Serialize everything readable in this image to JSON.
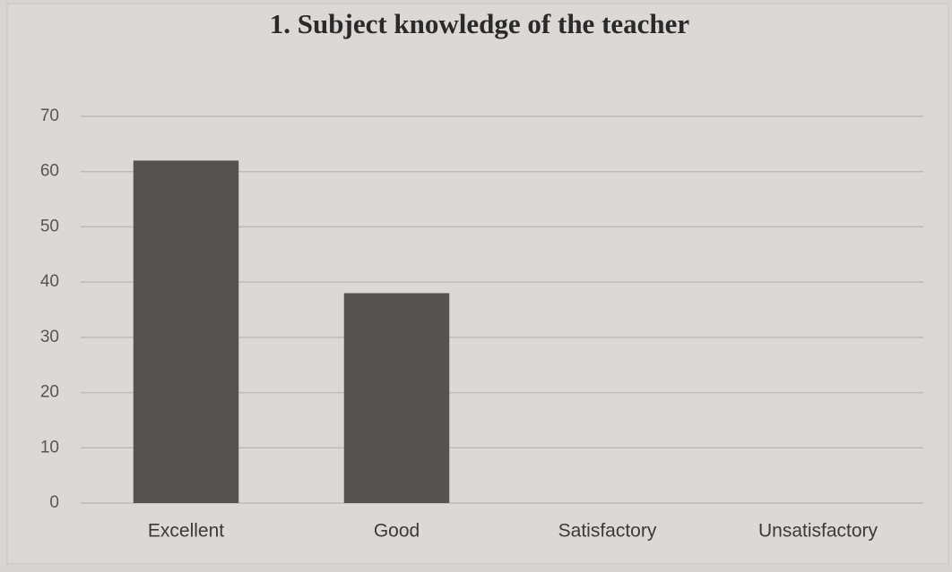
{
  "chart_data": {
    "type": "bar",
    "title": "1. Subject knowledge of the teacher",
    "categories": [
      "Excellent",
      "Good",
      "Satisfactory",
      "Unsatisfactory"
    ],
    "values": [
      62,
      38,
      0,
      0
    ],
    "color": "#555352",
    "ylim": [
      0,
      70
    ],
    "yticks": [
      0,
      10,
      20,
      30,
      40,
      50,
      60,
      70
    ],
    "grid": true
  }
}
